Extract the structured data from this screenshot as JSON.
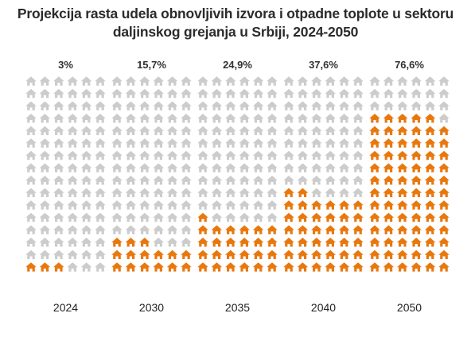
{
  "title": {
    "line1": "Projekcija rasta udela obnovljivih izvora i otpadne toplote u sektoru",
    "line2": "daljinskog grejanja u Srbiji, 2024-2050"
  },
  "colors": {
    "filled": "#E8780E",
    "empty": "#CCCCCC"
  },
  "chart_data": {
    "type": "pictogram",
    "icon": "house-icon",
    "title": "Projekcija rasta udela obnovljivih izvora i otpadne toplote u sektoru daljinskog grejanja u Srbiji, 2024-2050",
    "categories": [
      "2024",
      "2030",
      "2035",
      "2040",
      "2050"
    ],
    "values": [
      3,
      15.7,
      24.9,
      37.6,
      76.6
    ],
    "value_labels": [
      "3%",
      "15,7%",
      "24,9%",
      "37,6%",
      "76,6%"
    ],
    "unit": "%",
    "icons_per_row": 6,
    "rows": 16,
    "filled_icons": [
      3,
      15,
      25,
      38,
      77
    ]
  }
}
